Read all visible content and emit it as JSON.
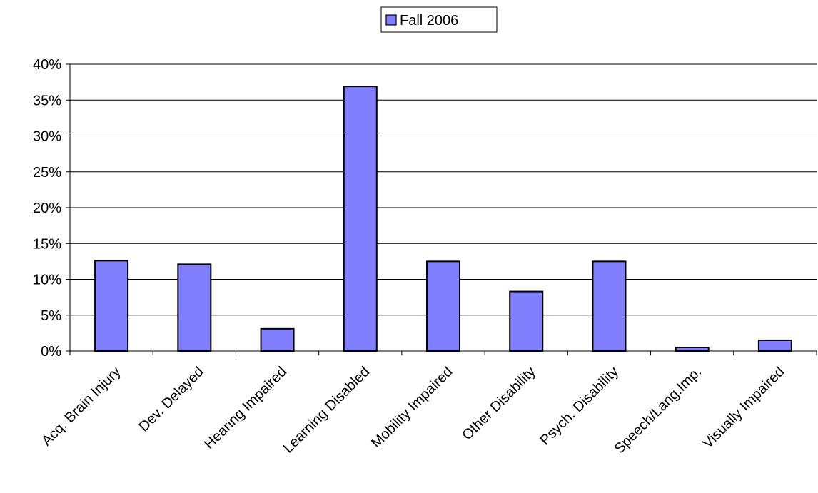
{
  "chart_data": {
    "type": "bar",
    "categories": [
      "Acq. Brain Injury",
      "Dev. Delayed",
      "Hearing Impaired",
      "Learning Disabled",
      "Mobility Impaired",
      "Other Disability",
      "Psych. Disability",
      "Speech/Lang.Imp.",
      "Visually Impaired"
    ],
    "series": [
      {
        "name": "Fall 2006",
        "values": [
          12.6,
          12.1,
          3.1,
          36.9,
          12.5,
          8.3,
          12.5,
          0.5,
          1.5
        ]
      }
    ],
    "y_unit": "%",
    "ylim": [
      0,
      40
    ],
    "y_ticks": [
      0,
      5,
      10,
      15,
      20,
      25,
      30,
      35,
      40
    ],
    "y_tick_labels": [
      "0%",
      "5%",
      "10%",
      "15%",
      "20%",
      "25%",
      "30%",
      "35%",
      "40%"
    ],
    "grid": true,
    "legend": "top-center",
    "colors": {
      "bar_fill": "#8080ff",
      "bar_stroke": "#000000",
      "grid": "#000000",
      "axis": "#000000"
    }
  }
}
